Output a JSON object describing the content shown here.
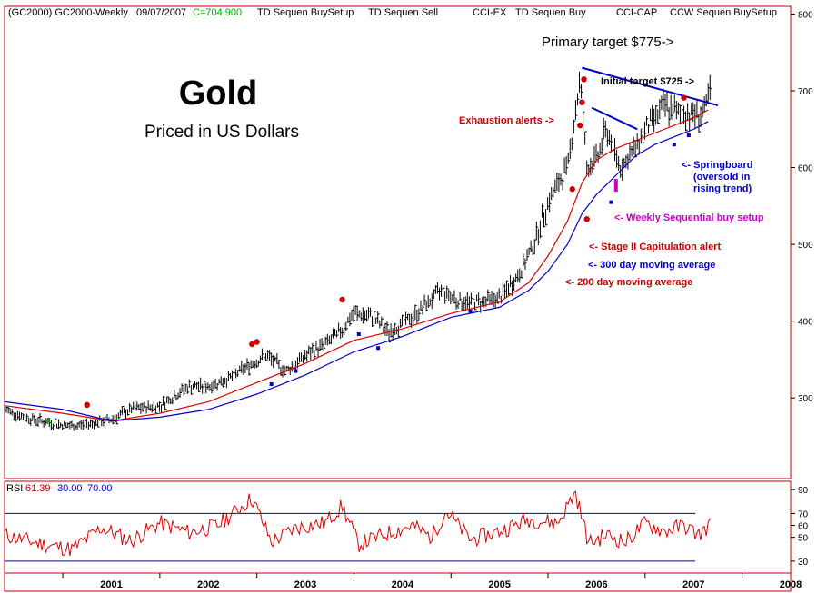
{
  "header": {
    "symbol": "(GC2000) GC2000-Weekly",
    "date": "09/07/2007",
    "close": "C=704.900",
    "studies": [
      "TD Sequen BuySetup",
      "TD Sequen Sell",
      "CCI-EX",
      "TD Sequen Buy",
      "CCI-CAP",
      "CCW Sequen BuySetup"
    ]
  },
  "colors": {
    "frame": "#cc0000",
    "price_bar": "#000000",
    "ma200": "#dd0000",
    "ma300": "#0000cc",
    "trend": "#0000cc",
    "rsi": "#dd0000",
    "rsi_level": "#0000cc",
    "alert_red": "#cc0000",
    "alert_blue": "#0000cc",
    "magenta": "#cc00cc",
    "green": "#00aa00"
  },
  "chart_data": [
    {
      "type": "line",
      "panel": "price",
      "title": "Gold",
      "subtitle": "Priced in US Dollars",
      "ylim": [
        195,
        810
      ],
      "yticks": [
        300,
        400,
        500,
        600,
        700,
        800
      ],
      "xlim": [
        2000.4,
        2008.5
      ],
      "x_tick_labels": [
        "2001",
        "2002",
        "2003",
        "2004",
        "2005",
        "2006",
        "2007",
        "2008"
      ],
      "price_anchors": {
        "x": [
          2000.4,
          2000.6,
          2000.85,
          2001.1,
          2001.35,
          2001.5,
          2001.7,
          2002.0,
          2002.3,
          2002.5,
          2002.7,
          2002.95,
          2003.1,
          2003.3,
          2003.5,
          2003.7,
          2003.85,
          2004.0,
          2004.2,
          2004.35,
          2004.6,
          2004.9,
          2005.1,
          2005.3,
          2005.5,
          2005.7,
          2005.85,
          2006.0,
          2006.2,
          2006.33,
          2006.4,
          2006.5,
          2006.6,
          2006.75,
          2006.9,
          2007.0,
          2007.1,
          2007.2,
          2007.35,
          2007.5,
          2007.6,
          2007.68
        ],
        "y": [
          285,
          275,
          268,
          263,
          268,
          272,
          285,
          290,
          315,
          315,
          325,
          345,
          355,
          335,
          355,
          370,
          385,
          410,
          405,
          385,
          405,
          440,
          425,
          425,
          430,
          460,
          500,
          555,
          600,
          715,
          600,
          610,
          650,
          600,
          625,
          650,
          665,
          680,
          670,
          670,
          670,
          700
        ]
      },
      "series": [
        {
          "name": "200 day moving average",
          "x": [
            2000.4,
            2001.0,
            2001.5,
            2002.0,
            2002.5,
            2003.0,
            2003.5,
            2004.0,
            2004.5,
            2005.0,
            2005.5,
            2005.8,
            2006.0,
            2006.2,
            2006.35,
            2006.5,
            2006.7,
            2006.9,
            2007.1,
            2007.3,
            2007.5,
            2007.65
          ],
          "y": [
            290,
            280,
            270,
            280,
            295,
            320,
            345,
            375,
            390,
            410,
            425,
            450,
            485,
            530,
            580,
            610,
            625,
            635,
            645,
            655,
            665,
            675
          ]
        },
        {
          "name": "300 day moving average",
          "x": [
            2000.4,
            2001.0,
            2001.5,
            2002.0,
            2002.5,
            2003.0,
            2003.5,
            2004.0,
            2004.5,
            2005.0,
            2005.5,
            2005.8,
            2006.0,
            2006.2,
            2006.35,
            2006.5,
            2006.7,
            2006.9,
            2007.1,
            2007.3,
            2007.5,
            2007.65
          ],
          "y": [
            295,
            285,
            270,
            275,
            285,
            305,
            330,
            360,
            380,
            405,
            418,
            440,
            465,
            500,
            540,
            565,
            590,
            615,
            630,
            640,
            650,
            660
          ]
        }
      ],
      "trendlines": [
        {
          "x": [
            2006.35,
            2007.75
          ],
          "y": [
            730,
            681
          ]
        },
        {
          "x": [
            2006.45,
            2006.92
          ],
          "y": [
            678,
            650
          ]
        }
      ],
      "markers": [
        {
          "x": 2001.25,
          "y": 291,
          "color": "red"
        },
        {
          "x": 2002.95,
          "y": 370,
          "color": "red"
        },
        {
          "x": 2003.0,
          "y": 373,
          "color": "red"
        },
        {
          "x": 2003.88,
          "y": 428,
          "color": "red"
        },
        {
          "x": 2006.25,
          "y": 572,
          "color": "red"
        },
        {
          "x": 2006.33,
          "y": 655,
          "color": "red"
        },
        {
          "x": 2006.35,
          "y": 685,
          "color": "red"
        },
        {
          "x": 2006.37,
          "y": 715,
          "color": "red"
        },
        {
          "x": 2006.4,
          "y": 533,
          "color": "red"
        },
        {
          "x": 2007.4,
          "y": 691,
          "color": "red"
        },
        {
          "x": 2003.15,
          "y": 318,
          "color": "blue"
        },
        {
          "x": 2003.4,
          "y": 335,
          "color": "blue"
        },
        {
          "x": 2004.05,
          "y": 383,
          "color": "blue"
        },
        {
          "x": 2004.25,
          "y": 365,
          "color": "blue"
        },
        {
          "x": 2005.2,
          "y": 413,
          "color": "blue"
        },
        {
          "x": 2006.65,
          "y": 555,
          "color": "blue"
        },
        {
          "x": 2007.3,
          "y": 630,
          "color": "blue"
        },
        {
          "x": 2007.45,
          "y": 642,
          "color": "blue"
        },
        {
          "x": 2006.7,
          "y": 571,
          "color": "magenta"
        },
        {
          "x": 2000.85,
          "y": 270,
          "color": "green"
        }
      ],
      "annotations": {
        "primary_target": "Primary target $775->",
        "initial_target": "Initial target $725 ->",
        "exhaustion": "Exhaustion alerts ->",
        "springboard_1": "<- Springboard",
        "springboard_2": "(oversold in",
        "springboard_3": "rising trend)",
        "weekly_setup": "<- Weekly Sequential buy setup",
        "stage2": "<- Stage II Capitulation alert",
        "ma300_label": "<- 300 day moving average",
        "ma200_label": "<- 200 day moving average"
      }
    },
    {
      "type": "line",
      "panel": "rsi",
      "legend": {
        "name": "RSI",
        "value": "61.39",
        "low": "30.00",
        "high": "70.00"
      },
      "ylim": [
        20,
        97
      ],
      "yticks": [
        30,
        50,
        60,
        70,
        90
      ],
      "levels": [
        30,
        70
      ],
      "series": [
        {
          "name": "RSI",
          "x": [
            2000.4,
            2000.8,
            2001.1,
            2001.4,
            2001.7,
            2002.0,
            2002.3,
            2002.6,
            2002.95,
            2003.15,
            2003.4,
            2003.7,
            2003.88,
            2004.05,
            2004.3,
            2004.6,
            2004.8,
            2004.95,
            2005.2,
            2005.5,
            2005.8,
            2006.1,
            2006.28,
            2006.42,
            2006.6,
            2006.8,
            2007.0,
            2007.2,
            2007.4,
            2007.55,
            2007.68
          ],
          "y": [
            52,
            44,
            40,
            58,
            47,
            62,
            54,
            60,
            83,
            46,
            58,
            62,
            76,
            44,
            52,
            60,
            50,
            72,
            48,
            55,
            65,
            62,
            88,
            45,
            52,
            46,
            62,
            55,
            60,
            52,
            61
          ]
        }
      ]
    }
  ]
}
